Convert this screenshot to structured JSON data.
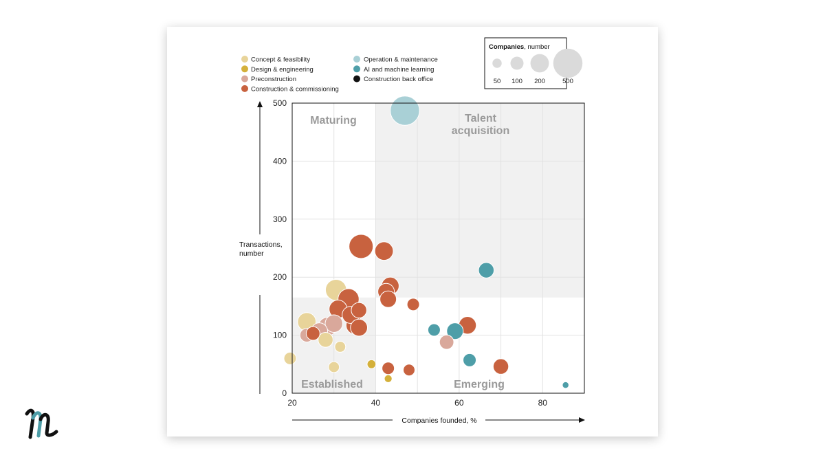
{
  "chart_data": {
    "type": "scatter",
    "xlabel": "Companies founded, %",
    "ylabel_lines": [
      "Transactions,",
      "number"
    ],
    "xlim": [
      20,
      90
    ],
    "ylim": [
      0,
      500
    ],
    "xticks": [
      "20",
      "40",
      "60",
      "80"
    ],
    "yticks": [
      "0",
      "100",
      "200",
      "300",
      "400",
      "500"
    ],
    "xtick_values": [
      20,
      40,
      60,
      80
    ],
    "ytick_values": [
      0,
      100,
      200,
      300,
      400,
      500
    ],
    "quadrant_split": {
      "x": 40,
      "y": 165
    },
    "quadrants": {
      "maturing": "Maturing",
      "talent_lines": [
        "Talent",
        "acquisition"
      ],
      "established": "Established",
      "emerging": "Emerging"
    },
    "size_legend": {
      "title_bold": "Companies",
      "title_rest": ", number",
      "sizes": [
        {
          "label": "50",
          "value": 50
        },
        {
          "label": "100",
          "value": 100
        },
        {
          "label": "200",
          "value": 200
        },
        {
          "label": "500",
          "value": 500
        }
      ]
    },
    "categories": [
      {
        "key": "concept",
        "label": "Concept & feasibility",
        "color": "#e8d49a"
      },
      {
        "key": "design",
        "label": "Design & engineering",
        "color": "#d4b03a"
      },
      {
        "key": "precon",
        "label": "Preconstruction",
        "color": "#d9a89b"
      },
      {
        "key": "construction",
        "label": "Construction & commissioning",
        "color": "#c8623f"
      },
      {
        "key": "operation",
        "label": "Operation & maintenance",
        "color": "#a9d0d6"
      },
      {
        "key": "ai",
        "label": "AI and machine learning",
        "color": "#4e9ea8"
      },
      {
        "key": "backoffice",
        "label": "Construction back office",
        "color": "#111111"
      }
    ],
    "points": [
      {
        "cat": "operation",
        "x": 47.0,
        "y": 487,
        "size": 500
      },
      {
        "cat": "construction",
        "x": 36.5,
        "y": 253,
        "size": 340
      },
      {
        "cat": "construction",
        "x": 42.0,
        "y": 245,
        "size": 200
      },
      {
        "cat": "construction",
        "x": 43.5,
        "y": 185,
        "size": 180
      },
      {
        "cat": "construction",
        "x": 42.5,
        "y": 175,
        "size": 160
      },
      {
        "cat": "construction",
        "x": 43.0,
        "y": 162,
        "size": 160
      },
      {
        "cat": "construction",
        "x": 49.0,
        "y": 153,
        "size": 90
      },
      {
        "cat": "concept",
        "x": 30.5,
        "y": 178,
        "size": 260
      },
      {
        "cat": "construction",
        "x": 33.5,
        "y": 162,
        "size": 260
      },
      {
        "cat": "construction",
        "x": 31.0,
        "y": 145,
        "size": 190
      },
      {
        "cat": "construction",
        "x": 36.0,
        "y": 143,
        "size": 140
      },
      {
        "cat": "construction",
        "x": 34.0,
        "y": 135,
        "size": 170
      },
      {
        "cat": "construction",
        "x": 35.0,
        "y": 117,
        "size": 180
      },
      {
        "cat": "construction",
        "x": 36.0,
        "y": 113,
        "size": 170
      },
      {
        "cat": "precon",
        "x": 30.0,
        "y": 120,
        "size": 180
      },
      {
        "cat": "precon",
        "x": 28.5,
        "y": 115,
        "size": 200
      },
      {
        "cat": "precon",
        "x": 26.5,
        "y": 107,
        "size": 160
      },
      {
        "cat": "concept",
        "x": 23.5,
        "y": 123,
        "size": 200
      },
      {
        "cat": "precon",
        "x": 23.5,
        "y": 100,
        "size": 110
      },
      {
        "cat": "construction",
        "x": 25.0,
        "y": 103,
        "size": 110
      },
      {
        "cat": "concept",
        "x": 28.0,
        "y": 92,
        "size": 130
      },
      {
        "cat": "concept",
        "x": 31.5,
        "y": 80,
        "size": 70
      },
      {
        "cat": "concept",
        "x": 19.5,
        "y": 60,
        "size": 90
      },
      {
        "cat": "concept",
        "x": 30.0,
        "y": 45,
        "size": 70
      },
      {
        "cat": "design",
        "x": 39.0,
        "y": 50,
        "size": 45
      },
      {
        "cat": "design",
        "x": 43.0,
        "y": 25,
        "size": 35
      },
      {
        "cat": "construction",
        "x": 43.0,
        "y": 43,
        "size": 90
      },
      {
        "cat": "construction",
        "x": 48.0,
        "y": 40,
        "size": 80
      },
      {
        "cat": "construction",
        "x": 62.0,
        "y": 117,
        "size": 180
      },
      {
        "cat": "construction",
        "x": 70.0,
        "y": 46,
        "size": 140
      },
      {
        "cat": "precon",
        "x": 57.0,
        "y": 88,
        "size": 120
      },
      {
        "cat": "ai",
        "x": 54.0,
        "y": 109,
        "size": 90
      },
      {
        "cat": "ai",
        "x": 59.0,
        "y": 107,
        "size": 160
      },
      {
        "cat": "ai",
        "x": 62.5,
        "y": 57,
        "size": 100
      },
      {
        "cat": "ai",
        "x": 66.5,
        "y": 212,
        "size": 140
      },
      {
        "cat": "ai",
        "x": 85.5,
        "y": 14,
        "size": 25
      }
    ]
  }
}
